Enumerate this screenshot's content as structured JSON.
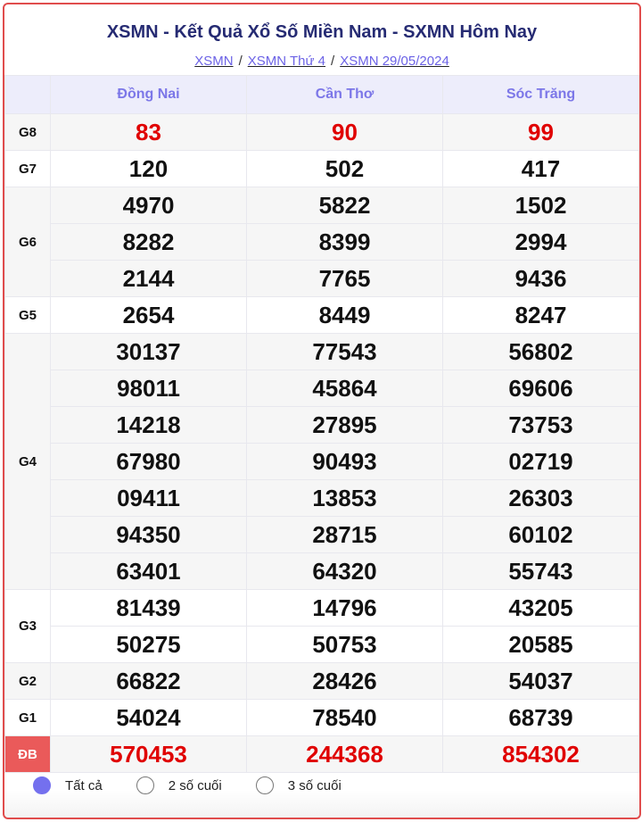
{
  "header": {
    "title": "XSMN - Kết Quả Xổ Số Miền Nam - SXMN Hôm Nay",
    "breadcrumbs": [
      "XSMN",
      "XSMN Thứ 4",
      "XSMN 29/05/2024"
    ],
    "separator": "/"
  },
  "provinces": [
    "Đồng Nai",
    "Cần Thơ",
    "Sóc Trăng"
  ],
  "prizes": [
    {
      "label": "G8",
      "red": true,
      "numbers": [
        [
          "83"
        ],
        [
          "90"
        ],
        [
          "99"
        ]
      ]
    },
    {
      "label": "G7",
      "numbers": [
        [
          "120"
        ],
        [
          "502"
        ],
        [
          "417"
        ]
      ]
    },
    {
      "label": "G6",
      "numbers": [
        [
          "4970",
          "8282",
          "2144"
        ],
        [
          "5822",
          "8399",
          "7765"
        ],
        [
          "1502",
          "2994",
          "9436"
        ]
      ]
    },
    {
      "label": "G5",
      "numbers": [
        [
          "2654"
        ],
        [
          "8449"
        ],
        [
          "8247"
        ]
      ]
    },
    {
      "label": "G4",
      "numbers": [
        [
          "30137",
          "98011",
          "14218",
          "67980",
          "09411",
          "94350",
          "63401"
        ],
        [
          "77543",
          "45864",
          "27895",
          "90493",
          "13853",
          "28715",
          "64320"
        ],
        [
          "56802",
          "69606",
          "73753",
          "02719",
          "26303",
          "60102",
          "55743"
        ]
      ]
    },
    {
      "label": "G3",
      "numbers": [
        [
          "81439",
          "50275"
        ],
        [
          "14796",
          "50753"
        ],
        [
          "43205",
          "20585"
        ]
      ]
    },
    {
      "label": "G2",
      "numbers": [
        [
          "66822"
        ],
        [
          "28426"
        ],
        [
          "54037"
        ]
      ]
    },
    {
      "label": "G1",
      "numbers": [
        [
          "54024"
        ],
        [
          "78540"
        ],
        [
          "68739"
        ]
      ]
    },
    {
      "label": "ĐB",
      "red": true,
      "special": true,
      "numbers": [
        [
          "570453"
        ],
        [
          "244368"
        ],
        [
          "854302"
        ]
      ]
    }
  ],
  "filters": [
    {
      "label": "Tất cả",
      "selected": true
    },
    {
      "label": "2 số cuối",
      "selected": false
    },
    {
      "label": "3 số cuối",
      "selected": false
    }
  ],
  "colors": {
    "accent": "#7470ee",
    "border": "#e04c4c",
    "prize_red": "#e00000",
    "title": "#262b73"
  }
}
